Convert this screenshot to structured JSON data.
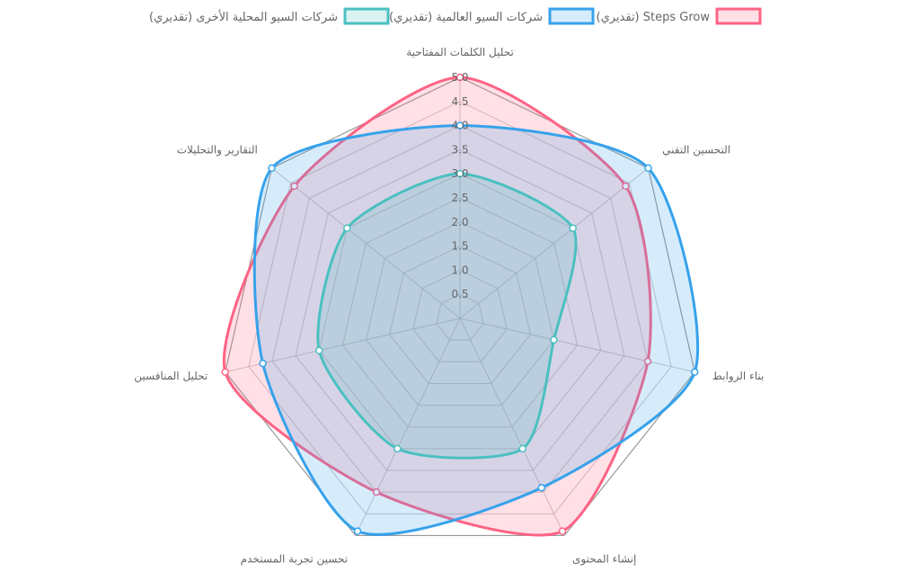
{
  "chart_data": {
    "type": "radar",
    "categories": [
      "تحليل الكلمات المفتاحية",
      "التحسين التقني",
      "بناء الروابط",
      "إنشاء المحتوى",
      "تحسين تجربة المستخدم",
      "تحليل المنافسين",
      "التقارير والتحليلات"
    ],
    "series": [
      {
        "name": "Steps Grow (تقديري)",
        "values": [
          5.0,
          4.4,
          4.0,
          4.9,
          4.0,
          5.0,
          4.4
        ],
        "stroke": "#ff6384",
        "fill": "rgba(255,99,132,0.2)"
      },
      {
        "name": "شركات السيو العالمية (تقديري)",
        "values": [
          4.0,
          5.0,
          5.0,
          3.9,
          4.9,
          4.2,
          5.0
        ],
        "stroke": "#36a2eb",
        "fill": "rgba(54,162,235,0.2)"
      },
      {
        "name": "شركات السيو المحلية الأخرى (تقديري)",
        "values": [
          3.0,
          3.0,
          2.0,
          3.0,
          3.0,
          3.0,
          3.0
        ],
        "stroke": "#4bc0c0",
        "fill": "rgba(75,192,192,0.2)"
      }
    ],
    "ticks": [
      "0.5",
      "1.0",
      "1.5",
      "2.0",
      "2.5",
      "3.0",
      "3.5",
      "4.0",
      "4.5",
      "5.0"
    ],
    "rmin": 0,
    "rmax": 5,
    "legend_position": "top"
  }
}
